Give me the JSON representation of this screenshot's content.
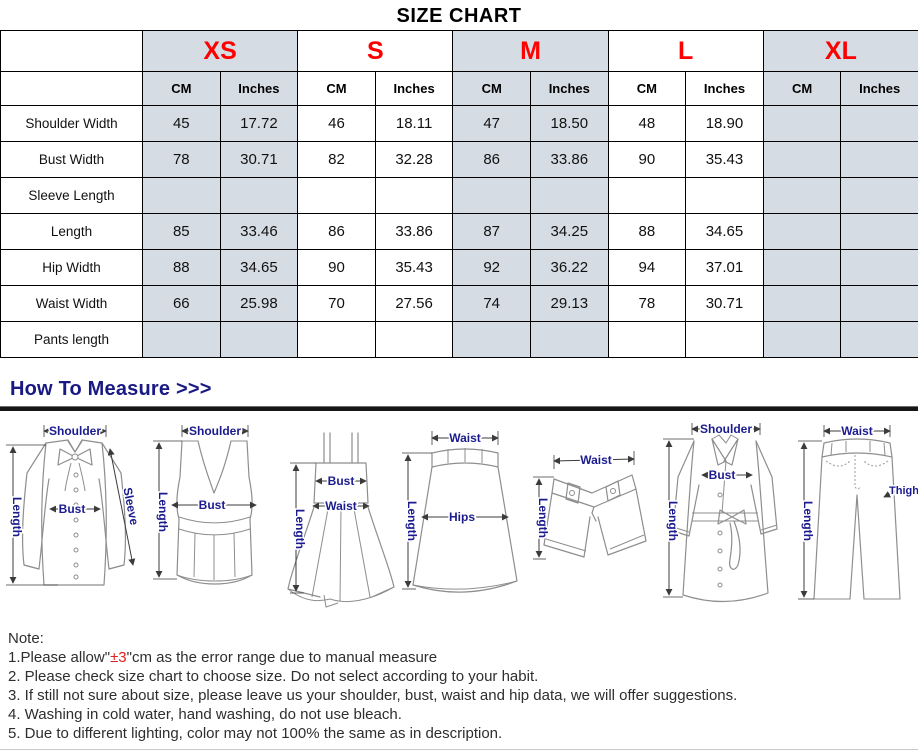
{
  "title": "SIZE CHART",
  "colors": {
    "shaded_cell": "#d6dce4",
    "size_red": "#ff0000",
    "measure_navy": "#191984",
    "note_red": "#e02020"
  },
  "table": {
    "sizes": [
      "XS",
      "S",
      "M",
      "L",
      "XL"
    ],
    "shaded_sizes": [
      "XS",
      "M",
      "XL"
    ],
    "unit_headers": [
      "CM",
      "Inches"
    ],
    "rows": [
      {
        "label": "Shoulder Width",
        "values": [
          "45",
          "17.72",
          "46",
          "18.11",
          "47",
          "18.50",
          "48",
          "18.90",
          "",
          ""
        ]
      },
      {
        "label": "Bust Width",
        "values": [
          "78",
          "30.71",
          "82",
          "32.28",
          "86",
          "33.86",
          "90",
          "35.43",
          "",
          ""
        ]
      },
      {
        "label": "Sleeve Length",
        "values": [
          "",
          "",
          "",
          "",
          "",
          "",
          "",
          "",
          "",
          ""
        ]
      },
      {
        "label": "Length",
        "values": [
          "85",
          "33.46",
          "86",
          "33.86",
          "87",
          "34.25",
          "88",
          "34.65",
          "",
          ""
        ]
      },
      {
        "label": "Hip Width",
        "values": [
          "88",
          "34.65",
          "90",
          "35.43",
          "92",
          "36.22",
          "94",
          "37.01",
          "",
          ""
        ]
      },
      {
        "label": "Waist Width",
        "values": [
          "66",
          "25.98",
          "70",
          "27.56",
          "74",
          "29.13",
          "78",
          "30.71",
          "",
          ""
        ]
      },
      {
        "label": "Pants length",
        "values": [
          "",
          "",
          "",
          "",
          "",
          "",
          "",
          "",
          "",
          ""
        ]
      }
    ]
  },
  "measure": {
    "heading": "How To Measure >>>",
    "garments": {
      "blouse": {
        "shoulder": "Shoulder",
        "bust": "Bust",
        "sleeve": "Sleeve",
        "length": "Length"
      },
      "tank_top": {
        "shoulder": "Shoulder",
        "bust": "Bust",
        "length": "Length"
      },
      "dress": {
        "bust": "Bust",
        "waist": "Waist",
        "length": "Length"
      },
      "skirt": {
        "waist": "Waist",
        "hips": "Hips",
        "length": "Length"
      },
      "shorts": {
        "waist": "Waist",
        "length": "Length"
      },
      "coat": {
        "shoulder": "Shoulder",
        "bust": "Bust",
        "length": "Length"
      },
      "pants": {
        "waist": "Waist",
        "thigh": "Thigh",
        "length": "Length"
      }
    }
  },
  "notes": {
    "heading": "Note:",
    "note1_prefix": "1.Please allow\"",
    "note1_highlight": "±3",
    "note1_suffix": "\"cm as the error range due to manual measure",
    "items": [
      "2. Please check size chart to choose size. Do not select according to your habit.",
      "3. If still not sure about size, please leave us your shoulder, bust, waist and hip data, we will offer suggestions.",
      "4. Washing in cold water, hand washing, do not use bleach.",
      "5. Due to different lighting, color may not 100% the same as in description."
    ]
  }
}
